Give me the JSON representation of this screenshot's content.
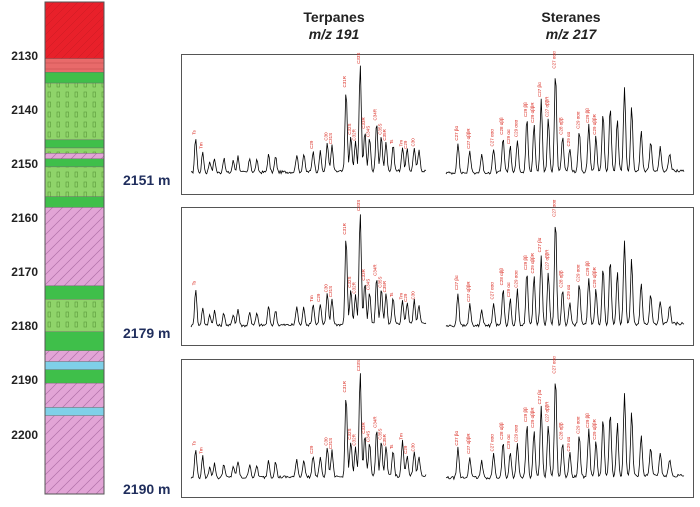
{
  "titles": {
    "terpanes": {
      "name": "Terpanes",
      "ion": "m/z 191"
    },
    "steranes": {
      "name": "Steranes",
      "ion": "m/z 217"
    }
  },
  "colors": {
    "red": "#e8202a",
    "red_light": "#e86a6a",
    "green": "#3fbf4a",
    "green_light": "#8fd46a",
    "pink": "#e2a4d6",
    "blue": "#7fd0e8",
    "trace": "#000000",
    "peak_label": "#d9261c",
    "sample_label": "#1f2d5c"
  },
  "chart_data": {
    "type": "line",
    "depth_axis": {
      "ticks": [
        "2130",
        "2140",
        "2150",
        "2160",
        "2170",
        "2180",
        "2190",
        "2200"
      ],
      "range": [
        2120,
        2211
      ]
    },
    "lithology": [
      {
        "top": 2120.0,
        "base": 2130.5,
        "pattern": "red"
      },
      {
        "top": 2130.5,
        "base": 2133.0,
        "pattern": "red_light"
      },
      {
        "top": 2133.0,
        "base": 2135.0,
        "pattern": "green"
      },
      {
        "top": 2135.0,
        "base": 2145.5,
        "pattern": "green_light"
      },
      {
        "top": 2145.5,
        "base": 2147.0,
        "pattern": "green"
      },
      {
        "top": 2147.0,
        "base": 2148.0,
        "pattern": "green_light"
      },
      {
        "top": 2148.0,
        "base": 2149.0,
        "pattern": "pink"
      },
      {
        "top": 2149.0,
        "base": 2150.5,
        "pattern": "green"
      },
      {
        "top": 2150.5,
        "base": 2156.0,
        "pattern": "green_light"
      },
      {
        "top": 2156.0,
        "base": 2158.0,
        "pattern": "green"
      },
      {
        "top": 2158.0,
        "base": 2172.5,
        "pattern": "pink"
      },
      {
        "top": 2172.5,
        "base": 2175.0,
        "pattern": "green"
      },
      {
        "top": 2175.0,
        "base": 2181.0,
        "pattern": "green_light"
      },
      {
        "top": 2181.0,
        "base": 2184.5,
        "pattern": "green"
      },
      {
        "top": 2184.5,
        "base": 2186.5,
        "pattern": "pink"
      },
      {
        "top": 2186.5,
        "base": 2188.0,
        "pattern": "blue"
      },
      {
        "top": 2188.0,
        "base": 2190.5,
        "pattern": "green"
      },
      {
        "top": 2190.5,
        "base": 2195.0,
        "pattern": "pink"
      },
      {
        "top": 2195.0,
        "base": 2196.5,
        "pattern": "blue"
      },
      {
        "top": 2196.5,
        "base": 2211.0,
        "pattern": "pink"
      }
    ],
    "samples": [
      {
        "depth_label": "2151 m",
        "terpanes": {
          "peaks": [
            [
              0.02,
              0.3
            ],
            [
              0.05,
              0.18
            ],
            [
              0.08,
              0.1
            ],
            [
              0.1,
              0.12
            ],
            [
              0.14,
              0.12
            ],
            [
              0.18,
              0.1
            ],
            [
              0.2,
              0.14
            ],
            [
              0.25,
              0.12
            ],
            [
              0.28,
              0.1
            ],
            [
              0.33,
              0.15
            ],
            [
              0.36,
              0.13
            ],
            [
              0.45,
              0.15
            ],
            [
              0.48,
              0.15
            ],
            [
              0.52,
              0.18
            ],
            [
              0.55,
              0.17
            ],
            [
              0.58,
              0.25
            ],
            [
              0.6,
              0.22
            ],
            [
              0.66,
              0.7
            ],
            [
              0.68,
              0.3
            ],
            [
              0.7,
              0.25
            ],
            [
              0.72,
              0.9
            ],
            [
              0.74,
              0.35
            ],
            [
              0.76,
              0.28
            ],
            [
              0.79,
              0.42
            ],
            [
              0.81,
              0.3
            ],
            [
              0.83,
              0.25
            ],
            [
              0.86,
              0.22
            ],
            [
              0.9,
              0.2
            ],
            [
              0.92,
              0.18
            ],
            [
              0.95,
              0.2
            ],
            [
              0.97,
              0.17
            ]
          ],
          "labels": [
            "Ts",
            "Tm",
            "C29",
            "C30",
            "C31S",
            "C31R",
            "C32S",
            "C32R",
            "C33S",
            "C33R",
            "C34S",
            "C34R",
            "C35S",
            "C35R"
          ]
        },
        "steranes": {
          "peaks": [
            [
              0.05,
              0.25
            ],
            [
              0.1,
              0.18
            ],
            [
              0.15,
              0.15
            ],
            [
              0.2,
              0.2
            ],
            [
              0.24,
              0.3
            ],
            [
              0.27,
              0.22
            ],
            [
              0.3,
              0.28
            ],
            [
              0.34,
              0.45
            ],
            [
              0.37,
              0.4
            ],
            [
              0.4,
              0.62
            ],
            [
              0.43,
              0.45
            ],
            [
              0.46,
              0.86
            ],
            [
              0.49,
              0.3
            ],
            [
              0.52,
              0.2
            ],
            [
              0.56,
              0.35
            ],
            [
              0.6,
              0.4
            ],
            [
              0.63,
              0.3
            ],
            [
              0.66,
              0.5
            ],
            [
              0.69,
              0.55
            ],
            [
              0.72,
              0.45
            ],
            [
              0.75,
              0.7
            ],
            [
              0.78,
              0.55
            ],
            [
              0.82,
              0.35
            ],
            [
              0.86,
              0.25
            ],
            [
              0.9,
              0.2
            ],
            [
              0.94,
              0.15
            ]
          ],
          "labels": [
            "C27 βα",
            "C27 αββR",
            "C27 ααα",
            "C28 αββ",
            "C29 αα",
            "C29 ααα",
            "C29 ββ",
            "C29 αββR"
          ]
        }
      },
      {
        "depth_label": "2179 m",
        "terpanes": {
          "peaks": [
            [
              0.02,
              0.32
            ],
            [
              0.05,
              0.16
            ],
            [
              0.08,
              0.1
            ],
            [
              0.1,
              0.13
            ],
            [
              0.14,
              0.11
            ],
            [
              0.18,
              0.1
            ],
            [
              0.2,
              0.14
            ],
            [
              0.25,
              0.12
            ],
            [
              0.28,
              0.1
            ],
            [
              0.33,
              0.16
            ],
            [
              0.36,
              0.13
            ],
            [
              0.45,
              0.16
            ],
            [
              0.48,
              0.15
            ],
            [
              0.52,
              0.18
            ],
            [
              0.55,
              0.18
            ],
            [
              0.58,
              0.26
            ],
            [
              0.6,
              0.22
            ],
            [
              0.66,
              0.75
            ],
            [
              0.68,
              0.3
            ],
            [
              0.7,
              0.25
            ],
            [
              0.72,
              0.95
            ],
            [
              0.74,
              0.36
            ],
            [
              0.76,
              0.28
            ],
            [
              0.79,
              0.4
            ],
            [
              0.81,
              0.3
            ],
            [
              0.83,
              0.26
            ],
            [
              0.86,
              0.22
            ],
            [
              0.9,
              0.2
            ],
            [
              0.92,
              0.18
            ],
            [
              0.95,
              0.2
            ],
            [
              0.97,
              0.17
            ]
          ],
          "labels": [
            "Ts",
            "Tm",
            "C29",
            "C30",
            "C31S",
            "C31R",
            "C32S",
            "C32R",
            "C33S",
            "C33R",
            "C34S",
            "C34R",
            "C35S",
            "C35R"
          ]
        },
        "steranes": {
          "peaks": [
            [
              0.05,
              0.28
            ],
            [
              0.1,
              0.18
            ],
            [
              0.15,
              0.14
            ],
            [
              0.2,
              0.2
            ],
            [
              0.24,
              0.32
            ],
            [
              0.27,
              0.22
            ],
            [
              0.3,
              0.3
            ],
            [
              0.34,
              0.45
            ],
            [
              0.37,
              0.42
            ],
            [
              0.4,
              0.6
            ],
            [
              0.43,
              0.45
            ],
            [
              0.46,
              0.9
            ],
            [
              0.49,
              0.3
            ],
            [
              0.52,
              0.2
            ],
            [
              0.56,
              0.35
            ],
            [
              0.6,
              0.4
            ],
            [
              0.63,
              0.3
            ],
            [
              0.66,
              0.5
            ],
            [
              0.69,
              0.55
            ],
            [
              0.72,
              0.45
            ],
            [
              0.75,
              0.7
            ],
            [
              0.78,
              0.55
            ],
            [
              0.82,
              0.35
            ],
            [
              0.86,
              0.25
            ],
            [
              0.9,
              0.2
            ],
            [
              0.94,
              0.15
            ]
          ],
          "labels": [
            "C27 βα",
            "C27 αββR",
            "C27 ααα",
            "C28 αββ",
            "C29 αα",
            "C29 ααα",
            "C29 ββ",
            "C29 αββR"
          ]
        }
      },
      {
        "depth_label": "2190 m",
        "terpanes": {
          "peaks": [
            [
              0.02,
              0.25
            ],
            [
              0.05,
              0.18
            ],
            [
              0.08,
              0.1
            ],
            [
              0.1,
              0.12
            ],
            [
              0.14,
              0.12
            ],
            [
              0.18,
              0.1
            ],
            [
              0.2,
              0.14
            ],
            [
              0.25,
              0.12
            ],
            [
              0.28,
              0.1
            ],
            [
              0.33,
              0.15
            ],
            [
              0.36,
              0.13
            ],
            [
              0.45,
              0.15
            ],
            [
              0.48,
              0.15
            ],
            [
              0.52,
              0.18
            ],
            [
              0.55,
              0.17
            ],
            [
              0.58,
              0.25
            ],
            [
              0.6,
              0.22
            ],
            [
              0.66,
              0.7
            ],
            [
              0.68,
              0.3
            ],
            [
              0.7,
              0.25
            ],
            [
              0.72,
              0.88
            ],
            [
              0.74,
              0.35
            ],
            [
              0.76,
              0.28
            ],
            [
              0.79,
              0.4
            ],
            [
              0.81,
              0.3
            ],
            [
              0.83,
              0.25
            ],
            [
              0.86,
              0.22
            ],
            [
              0.9,
              0.3
            ],
            [
              0.92,
              0.18
            ],
            [
              0.95,
              0.2
            ],
            [
              0.97,
              0.17
            ]
          ],
          "labels": [
            "Ts",
            "Tm",
            "C29",
            "C30",
            "C31S",
            "C31R",
            "C32S",
            "C32R",
            "C33S",
            "C33R",
            "C34S",
            "C34R",
            "C35S",
            "C35R"
          ]
        },
        "steranes": {
          "peaks": [
            [
              0.05,
              0.25
            ],
            [
              0.1,
              0.18
            ],
            [
              0.15,
              0.14
            ],
            [
              0.2,
              0.2
            ],
            [
              0.24,
              0.3
            ],
            [
              0.27,
              0.22
            ],
            [
              0.3,
              0.28
            ],
            [
              0.34,
              0.45
            ],
            [
              0.37,
              0.4
            ],
            [
              0.4,
              0.6
            ],
            [
              0.43,
              0.45
            ],
            [
              0.46,
              0.86
            ],
            [
              0.49,
              0.3
            ],
            [
              0.52,
              0.2
            ],
            [
              0.56,
              0.35
            ],
            [
              0.6,
              0.4
            ],
            [
              0.63,
              0.3
            ],
            [
              0.66,
              0.5
            ],
            [
              0.69,
              0.55
            ],
            [
              0.72,
              0.45
            ],
            [
              0.75,
              0.7
            ],
            [
              0.78,
              0.55
            ],
            [
              0.82,
              0.35
            ],
            [
              0.86,
              0.25
            ],
            [
              0.9,
              0.2
            ],
            [
              0.94,
              0.15
            ]
          ],
          "labels": [
            "C27 βα",
            "C27 αββR",
            "C27 ααα",
            "C28 αββ",
            "C29 αα",
            "C29 ααα",
            "C29 ββ",
            "C29 αββR"
          ]
        }
      }
    ]
  }
}
